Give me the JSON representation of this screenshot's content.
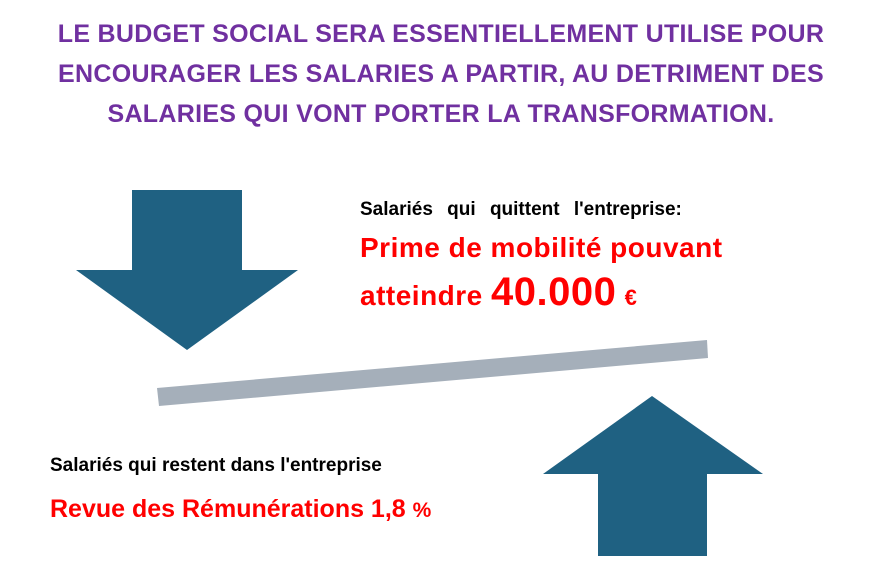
{
  "headline": "LE BUDGET SOCIAL SERA ESSENTIELLEMENT UTILISE POUR ENCOURAGER LES SALARIES A PARTIR, AU DETRIMENT DES SALARIES QUI VONT PORTER LA TRANSFORMATION.",
  "leaving": {
    "heading": "Salariés qui quittent l'entreprise:",
    "detail_text": "Prime de mobilité pouvant atteindre",
    "amount": "40.000",
    "currency": "€"
  },
  "staying": {
    "heading": "Salariés qui restent dans l'entreprise",
    "detail_text": "Revue des Rémunérations 1,8",
    "percent_sign": "%"
  },
  "colors": {
    "headline": "#7030A0",
    "highlight": "#FF0000",
    "arrow": "#1F6182",
    "balance_bar": "#A5AFBA"
  },
  "icons": {
    "down_arrow": "down-arrow-icon",
    "up_arrow": "up-arrow-icon"
  }
}
